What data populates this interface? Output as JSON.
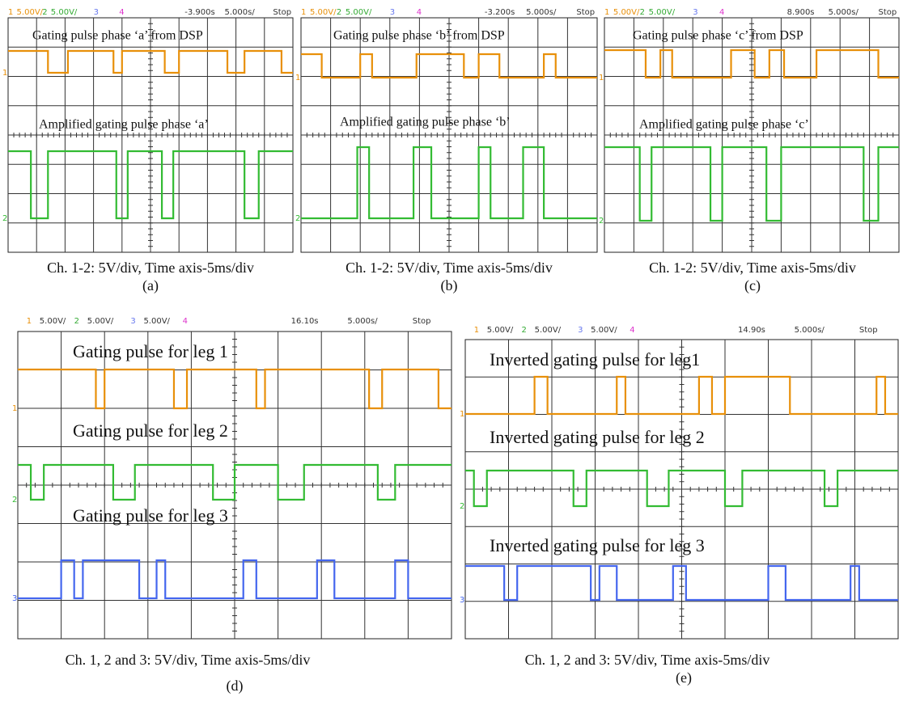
{
  "panels": [
    {
      "header": [
        {
          "text": "1",
          "color": "#e8900a"
        },
        {
          "text": "5.00V/",
          "color": "#e8900a"
        },
        {
          "text": "2",
          "color": "#33aa33"
        },
        {
          "text": "5.00V/",
          "color": "#33aa33"
        },
        {
          "text": "3",
          "color": "#6677ee"
        },
        {
          "text": "4",
          "color": "#dd33cc"
        },
        {
          "text": "-3.900s",
          "color": "#333333"
        },
        {
          "text": "5.000s/",
          "color": "#333333"
        },
        {
          "text": "Stop",
          "color": "#333333"
        }
      ],
      "labels": [
        "Gating pulse phase ‘a’ from DSP",
        "Amplified gating pulse phase ‘a’"
      ],
      "markers": [
        "1",
        "2"
      ],
      "caption": "Ch. 1-2: 5V/div, Time axis-5ms/div",
      "tag": "(a)"
    },
    {
      "header": [
        {
          "text": "1",
          "color": "#e8900a"
        },
        {
          "text": "5.00V/",
          "color": "#e8900a"
        },
        {
          "text": "2",
          "color": "#33aa33"
        },
        {
          "text": "5.00V/",
          "color": "#33aa33"
        },
        {
          "text": "3",
          "color": "#6677ee"
        },
        {
          "text": "4",
          "color": "#dd33cc"
        },
        {
          "text": "-3.200s",
          "color": "#333333"
        },
        {
          "text": "5.000s/",
          "color": "#333333"
        },
        {
          "text": "Stop",
          "color": "#333333"
        }
      ],
      "labels": [
        "Gating pulse phase ‘b’ from DSP",
        "Amplified gating pulse phase ‘b’"
      ],
      "markers": [
        "1",
        "2"
      ],
      "caption": "Ch. 1-2: 5V/div, Time axis-5ms/div",
      "tag": "(b)"
    },
    {
      "header": [
        {
          "text": "1",
          "color": "#e8900a"
        },
        {
          "text": "5.00V/",
          "color": "#e8900a"
        },
        {
          "text": "2",
          "color": "#33aa33"
        },
        {
          "text": "5.00V/",
          "color": "#33aa33"
        },
        {
          "text": "3",
          "color": "#6677ee"
        },
        {
          "text": "4",
          "color": "#dd33cc"
        },
        {
          "text": "8.900s",
          "color": "#333333"
        },
        {
          "text": "5.000s/",
          "color": "#333333"
        },
        {
          "text": "Stop",
          "color": "#333333"
        }
      ],
      "labels": [
        "Gating pulse phase ‘c’ from DSP",
        "Amplified gating pulse phase ‘c’"
      ],
      "markers": [
        "1",
        "2"
      ],
      "caption": "Ch. 1-2: 5V/div, Time axis-5ms/div",
      "tag": "(c)"
    },
    {
      "header": [
        {
          "text": "1",
          "color": "#e8900a"
        },
        {
          "text": "5.00V/",
          "color": "#333333"
        },
        {
          "text": "2",
          "color": "#33aa33"
        },
        {
          "text": "5.00V/",
          "color": "#333333"
        },
        {
          "text": "3",
          "color": "#6677ee"
        },
        {
          "text": "5.00V/",
          "color": "#333333"
        },
        {
          "text": "4",
          "color": "#dd33cc"
        },
        {
          "text": "16.10s",
          "color": "#333333"
        },
        {
          "text": "5.000s/",
          "color": "#333333"
        },
        {
          "text": "Stop",
          "color": "#333333"
        }
      ],
      "labels": [
        "Gating pulse for leg 1",
        "Gating pulse for leg 2",
        "Gating pulse for leg 3"
      ],
      "markers": [
        "1",
        "2",
        "3"
      ],
      "caption": "Ch. 1, 2 and 3: 5V/div, Time axis-5ms/div",
      "tag": "(d)"
    },
    {
      "header": [
        {
          "text": "1",
          "color": "#e8900a"
        },
        {
          "text": "5.00V/",
          "color": "#333333"
        },
        {
          "text": "2",
          "color": "#33aa33"
        },
        {
          "text": "5.00V/",
          "color": "#333333"
        },
        {
          "text": "3",
          "color": "#6677ee"
        },
        {
          "text": "5.00V/",
          "color": "#333333"
        },
        {
          "text": "4",
          "color": "#dd33cc"
        },
        {
          "text": "14.90s",
          "color": "#333333"
        },
        {
          "text": "5.000s/",
          "color": "#333333"
        },
        {
          "text": "Stop",
          "color": "#333333"
        }
      ],
      "labels": [
        "Inverted gating pulse for leg1",
        "Inverted gating pulse for leg 2",
        "Inverted gating pulse for leg 3"
      ],
      "markers": [
        "1",
        "2",
        "3"
      ],
      "caption": "Ch. 1, 2 and 3: 5V/div, Time axis-5ms/div",
      "tag": "(e)"
    }
  ]
}
